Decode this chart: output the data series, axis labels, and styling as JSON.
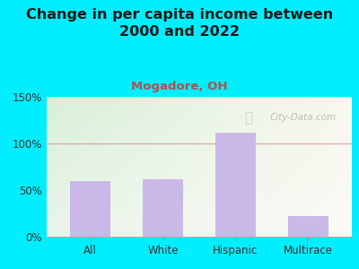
{
  "title": "Change in per capita income between\n2000 and 2022",
  "subtitle": "Mogadore, OH",
  "categories": [
    "All",
    "White",
    "Hispanic",
    "Multirace"
  ],
  "values": [
    60,
    62,
    112,
    22
  ],
  "bar_color": "#c9b8e8",
  "title_fontsize": 11.5,
  "subtitle_fontsize": 9.5,
  "subtitle_color": "#b05050",
  "title_color": "#1a1a1a",
  "background_outer": "#00eeff",
  "background_plot_topleft": "#d8f0d8",
  "background_plot_bottomright": "#f8f8ee",
  "ylim": [
    0,
    150
  ],
  "yticks": [
    0,
    50,
    100,
    150
  ],
  "ytick_labels": [
    "0%",
    "50%",
    "100%",
    "150%"
  ],
  "watermark": "City-Data.com",
  "hline_color": "#e0a0a0",
  "hline_y": 100,
  "hline_linewidth": 0.8
}
